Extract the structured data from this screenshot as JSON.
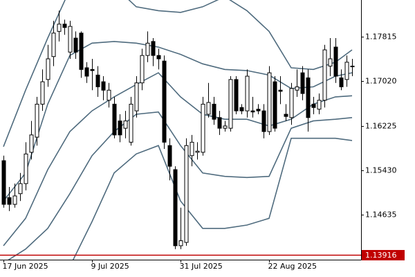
{
  "chart_data": {
    "type": "candlestick",
    "categories": [
      "17 Jun 2025",
      null,
      null,
      null,
      null,
      null,
      null,
      null,
      null,
      null,
      null,
      null,
      null,
      null,
      null,
      null,
      "9 Jul 2025",
      null,
      null,
      null,
      null,
      null,
      null,
      null,
      null,
      null,
      null,
      null,
      null,
      null,
      null,
      null,
      "31 Jul 2025",
      null,
      null,
      null,
      null,
      null,
      null,
      null,
      null,
      null,
      null,
      null,
      null,
      null,
      null,
      null,
      "22 Aug 2025",
      null,
      null,
      null,
      null,
      null,
      null,
      null,
      null,
      null,
      null,
      null,
      null,
      null,
      null,
      null
    ],
    "open": [
      1.156,
      1.1494,
      1.1482,
      1.1501,
      1.1519,
      1.1575,
      1.1602,
      1.1661,
      1.1705,
      1.1746,
      1.1791,
      1.1804,
      1.1754,
      1.1779,
      1.1788,
      1.1726,
      1.1723,
      1.1713,
      1.1701,
      1.1668,
      1.1661,
      1.1631,
      1.1618,
      1.1593,
      1.1649,
      1.1699,
      1.1748,
      1.1773,
      1.1748,
      1.1738,
      1.1587,
      1.1544,
      1.1408,
      1.1414,
      1.1569,
      1.1575,
      1.1575,
      1.1643,
      1.1661,
      1.1637,
      1.1618,
      1.1618,
      1.1705,
      1.1655,
      1.1649,
      1.1649,
      1.1652,
      1.1649,
      1.1612,
      1.1701,
      1.1686,
      1.1643,
      1.1637,
      1.1686,
      1.1717,
      1.1708,
      1.1661,
      1.1652,
      1.1668,
      1.1729,
      1.1763,
      1.1708,
      1.1705,
      1.1729
    ],
    "high": [
      1.1569,
      1.1513,
      1.1519,
      1.1538,
      1.1593,
      1.1631,
      1.1674,
      1.1723,
      1.1767,
      1.181,
      1.1828,
      1.1812,
      1.181,
      1.1791,
      1.1791,
      1.1736,
      1.1742,
      1.1729,
      1.1711,
      1.1699,
      1.1674,
      1.1643,
      1.1649,
      1.1674,
      1.1711,
      1.176,
      1.1791,
      1.1779,
      1.176,
      1.1748,
      1.16,
      1.155,
      1.1476,
      1.16,
      1.1606,
      1.1593,
      1.1674,
      1.1699,
      1.1674,
      1.1649,
      1.1631,
      1.1711,
      1.1711,
      1.1661,
      1.1723,
      1.1674,
      1.1661,
      1.1661,
      1.1729,
      1.1711,
      1.1711,
      1.1661,
      1.1699,
      1.1723,
      1.1729,
      1.1723,
      1.1674,
      1.168,
      1.1767,
      1.1779,
      1.1779,
      1.1723,
      1.1748,
      1.1742
    ],
    "low": [
      1.1476,
      1.147,
      1.1476,
      1.1488,
      1.1507,
      1.1562,
      1.1587,
      1.1649,
      1.1692,
      1.1729,
      1.1773,
      1.1785,
      1.1742,
      1.1742,
      1.1708,
      1.1699,
      1.1686,
      1.1674,
      1.1668,
      1.1655,
      1.16,
      1.1593,
      1.16,
      1.1587,
      1.1637,
      1.1686,
      1.1736,
      1.1729,
      1.1723,
      1.1581,
      1.1525,
      1.1402,
      1.1402,
      1.1408,
      1.155,
      1.1562,
      1.1569,
      1.1637,
      1.1624,
      1.1606,
      1.1612,
      1.1612,
      1.1643,
      1.1643,
      1.1637,
      1.1637,
      1.1643,
      1.16,
      1.1606,
      1.1612,
      1.1661,
      1.1631,
      1.1624,
      1.1674,
      1.1668,
      1.1612,
      1.1643,
      1.1643,
      1.1655,
      1.1711,
      1.1699,
      1.1686,
      1.1692,
      1.1711
    ],
    "close": [
      1.1482,
      1.1482,
      1.1497,
      1.1519,
      1.1572,
      1.1606,
      1.1661,
      1.1701,
      1.1742,
      1.1788,
      1.1804,
      1.1798,
      1.18,
      1.1754,
      1.1723,
      1.1711,
      1.1721,
      1.1692,
      1.1686,
      1.1686,
      1.1606,
      1.1606,
      1.1631,
      1.1661,
      1.1699,
      1.1748,
      1.177,
      1.1748,
      1.1742,
      1.1593,
      1.155,
      1.1408,
      1.1417,
      1.1587,
      1.1593,
      1.1577,
      1.1661,
      1.1664,
      1.1634,
      1.1618,
      1.1622,
      1.1705,
      1.1649,
      1.1649,
      1.1711,
      1.1647,
      1.1649,
      1.1612,
      1.1717,
      1.1618,
      1.1684,
      1.1639,
      1.1689,
      1.1692,
      1.168,
      1.1637,
      1.1655,
      1.1668,
      1.1758,
      1.1742,
      1.1711,
      1.1692,
      1.1736,
      1.1729
    ],
    "up_color": "#ffffff",
    "down_color": "#000000",
    "outline_color": "#000000",
    "band_color": "#4f6b7e",
    "bands": [
      {
        "x": [
          0,
          4,
          8,
          12,
          16,
          20,
          24,
          28,
          32,
          36,
          40,
          44,
          48,
          52,
          56,
          60,
          63
        ],
        "values": [
          1.1585,
          1.1686,
          1.1779,
          1.1866,
          1.1896,
          1.1872,
          1.1835,
          1.1828,
          1.1825,
          1.1835,
          1.1853,
          1.1828,
          1.1791,
          1.1726,
          1.1723,
          1.1736,
          1.1758
        ]
      },
      {
        "x": [
          0,
          4,
          8,
          12,
          16,
          20,
          24,
          28,
          32,
          36,
          40,
          44,
          48,
          52,
          56,
          60,
          63
        ],
        "values": [
          1.1488,
          1.1538,
          1.1661,
          1.1748,
          1.177,
          1.1773,
          1.177,
          1.1763,
          1.175,
          1.1733,
          1.1723,
          1.1721,
          1.1713,
          1.1689,
          1.1692,
          1.1711,
          1.1717
        ]
      },
      {
        "x": [
          0,
          4,
          8,
          12,
          16,
          20,
          24,
          28,
          32,
          36,
          40,
          44,
          48,
          52,
          56,
          60,
          63
        ],
        "values": [
          1.1408,
          1.1457,
          1.1544,
          1.1612,
          1.1649,
          1.1674,
          1.1696,
          1.1717,
          1.1674,
          1.1643,
          1.1634,
          1.1634,
          1.1622,
          1.1634,
          1.1661,
          1.1674,
          1.1676
        ]
      },
      {
        "x": [
          0,
          4,
          8,
          12,
          16,
          20,
          24,
          28,
          32,
          36,
          40,
          44,
          48,
          52,
          56,
          60,
          63
        ],
        "values": [
          1.1377,
          1.1402,
          1.1439,
          1.1501,
          1.1569,
          1.1612,
          1.1643,
          1.1647,
          1.1587,
          1.1538,
          1.1532,
          1.153,
          1.1532,
          1.1618,
          1.1631,
          1.1634,
          1.1637
        ]
      },
      {
        "x": [
          0,
          4,
          8,
          12,
          16,
          20,
          24,
          28,
          32,
          36,
          40,
          44,
          48,
          52,
          56,
          60,
          63
        ],
        "values": [
          1.1328,
          1.1328,
          1.134,
          1.1371,
          1.1451,
          1.1538,
          1.1572,
          1.1587,
          1.1488,
          1.1439,
          1.1439,
          1.1445,
          1.1457,
          1.16,
          1.16,
          1.16,
          1.1596
        ]
      }
    ],
    "price_line": {
      "value": 1.13916,
      "color": "#c00000"
    },
    "xlim": [
      -0.625,
      64.625
    ],
    "ylim": [
      1.13831,
      1.18471
    ],
    "yticks": [
      1.17815,
      {
        "value": 1.1702,
        "label": "1.17020"
      },
      1.16225,
      {
        "value": 1.1543,
        "label": "1.15430"
      },
      1.14635
    ]
  }
}
